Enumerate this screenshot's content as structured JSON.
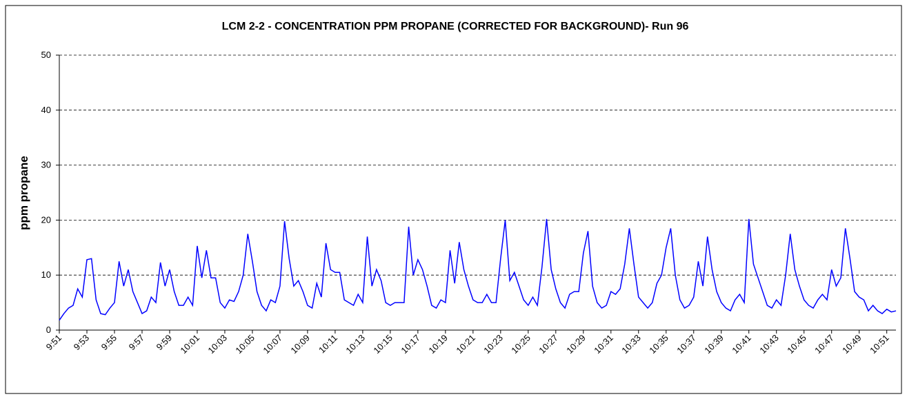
{
  "chart_data": {
    "type": "line",
    "title": "LCM 2-2 - CONCENTRATION PPM PROPANE (CORRECTED FOR BACKGROUND)- Run 96",
    "y_label": "ppm propane",
    "color": "#0000ff",
    "ylim": [
      0,
      50
    ],
    "yticks": [
      0,
      10,
      20,
      30,
      40,
      50
    ],
    "grid": true,
    "categories": [
      "9:51",
      null,
      null,
      null,
      null,
      null,
      "9:53",
      null,
      null,
      null,
      null,
      null,
      "9:55",
      null,
      null,
      null,
      null,
      null,
      "9:57",
      null,
      null,
      null,
      null,
      null,
      "9:59",
      null,
      null,
      null,
      null,
      null,
      "10:01",
      null,
      null,
      null,
      null,
      null,
      "10:03",
      null,
      null,
      null,
      null,
      null,
      "10:05",
      null,
      null,
      null,
      null,
      null,
      "10:07",
      null,
      null,
      null,
      null,
      null,
      "10:09",
      null,
      null,
      null,
      null,
      null,
      "10:11",
      null,
      null,
      null,
      null,
      null,
      "10:13",
      null,
      null,
      null,
      null,
      null,
      "10:15",
      null,
      null,
      null,
      null,
      null,
      "10:17",
      null,
      null,
      null,
      null,
      null,
      "10:19",
      null,
      null,
      null,
      null,
      null,
      "10:21",
      null,
      null,
      null,
      null,
      null,
      "10:23",
      null,
      null,
      null,
      null,
      null,
      "10:25",
      null,
      null,
      null,
      null,
      null,
      "10:27",
      null,
      null,
      null,
      null,
      null,
      "10:29",
      null,
      null,
      null,
      null,
      null,
      "10:31",
      null,
      null,
      null,
      null,
      null,
      "10:33",
      null,
      null,
      null,
      null,
      null,
      "10:35",
      null,
      null,
      null,
      null,
      null,
      "10:37",
      null,
      null,
      null,
      null,
      null,
      "10:39",
      null,
      null,
      null,
      null,
      null,
      "10:41",
      null,
      null,
      null,
      null,
      null,
      "10:43",
      null,
      null,
      null,
      null,
      null,
      "10:45",
      null,
      null,
      null,
      null,
      null,
      "10:47",
      null,
      null,
      null,
      null,
      null,
      "10:49",
      null,
      null,
      null,
      null,
      null,
      "10:51",
      null,
      null
    ],
    "values": [
      1.8,
      3,
      4,
      4.5,
      7.5,
      6,
      12.8,
      13,
      5.5,
      3,
      2.8,
      4,
      5,
      12.5,
      8,
      11,
      7,
      5,
      3,
      3.5,
      6,
      5,
      12.3,
      8,
      11,
      7,
      4.5,
      4.5,
      6,
      4.5,
      15.3,
      9.5,
      14.5,
      9.5,
      9.5,
      5,
      4,
      5.5,
      5.2,
      7,
      10,
      17.5,
      12.5,
      7,
      4.5,
      3.5,
      5.5,
      5,
      8,
      19.8,
      13,
      8,
      9,
      7,
      4.5,
      4,
      8.5,
      6,
      15.8,
      11,
      10.5,
      10.5,
      5.5,
      5,
      4.5,
      6.5,
      5,
      17,
      8,
      11,
      9,
      5,
      4.5,
      5,
      5,
      5,
      18.8,
      10,
      12.8,
      11,
      8,
      4.5,
      4,
      5.5,
      5,
      14.5,
      8.5,
      16,
      11,
      8,
      5.5,
      5,
      5,
      6.5,
      5,
      5,
      13,
      20,
      9,
      10.5,
      8,
      5.5,
      4.5,
      6,
      4.5,
      11.5,
      20.2,
      11,
      7.5,
      5,
      4,
      6.5,
      7,
      7,
      14,
      18,
      8,
      5,
      4,
      4.5,
      7,
      6.5,
      7.5,
      12,
      18.5,
      12,
      6,
      5,
      4,
      5,
      8.5,
      10,
      15,
      18.5,
      10,
      5.5,
      4,
      4.5,
      6,
      12.5,
      8,
      17,
      11,
      7,
      5,
      4,
      3.5,
      5.5,
      6.5,
      5,
      20.2,
      12,
      9.5,
      7,
      4.5,
      4,
      5.5,
      4.5,
      10,
      17.5,
      11,
      8,
      5.5,
      4.5,
      4,
      5.5,
      6.5,
      5.5,
      11,
      8,
      9.5,
      18.5,
      13,
      7,
      6,
      5.5,
      3.5,
      4.5,
      3.5,
      3,
      3.8,
      3.3,
      3.5
    ]
  }
}
